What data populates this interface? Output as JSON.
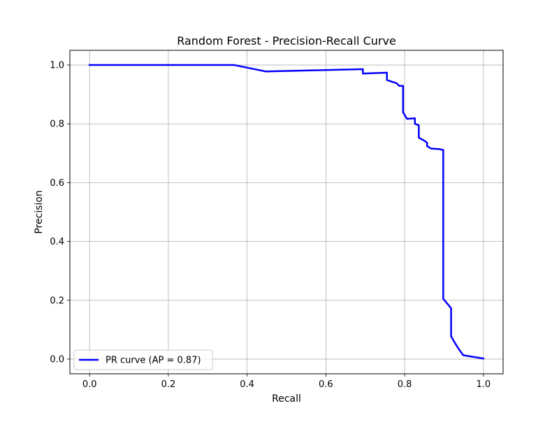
{
  "chart_data": {
    "type": "line",
    "title": "Random Forest - Precision-Recall Curve",
    "xlabel": "Recall",
    "ylabel": "Precision",
    "xlim": [
      -0.05,
      1.05
    ],
    "ylim": [
      -0.05,
      1.05
    ],
    "xticks": [
      0.0,
      0.2,
      0.4,
      0.6,
      0.8,
      1.0
    ],
    "xtick_labels": [
      "0.0",
      "0.2",
      "0.4",
      "0.6",
      "0.8",
      "1.0"
    ],
    "yticks": [
      0.0,
      0.2,
      0.4,
      0.6,
      0.8,
      1.0
    ],
    "ytick_labels": [
      "0.0",
      "0.2",
      "0.4",
      "0.6",
      "0.8",
      "1.0"
    ],
    "grid": true,
    "legend_position": "lower-left",
    "series": [
      {
        "name": "PR curve (AP = 0.87)",
        "color": "#0000ff",
        "x": [
          0.0,
          0.367,
          0.448,
          0.694,
          0.694,
          0.755,
          0.755,
          0.78,
          0.78,
          0.786,
          0.786,
          0.796,
          0.796,
          0.806,
          0.806,
          0.826,
          0.826,
          0.836,
          0.836,
          0.852,
          0.857,
          0.857,
          0.867,
          0.888,
          0.898,
          0.898,
          0.918,
          0.918,
          0.929,
          0.939,
          0.949,
          1.0
        ],
        "y": [
          1.0,
          1.0,
          0.978,
          0.986,
          0.971,
          0.974,
          0.949,
          0.938,
          0.938,
          0.929,
          0.929,
          0.929,
          0.839,
          0.817,
          0.817,
          0.819,
          0.8,
          0.795,
          0.753,
          0.741,
          0.735,
          0.724,
          0.716,
          0.714,
          0.711,
          0.205,
          0.173,
          0.077,
          0.052,
          0.031,
          0.013,
          0.002
        ]
      }
    ]
  }
}
